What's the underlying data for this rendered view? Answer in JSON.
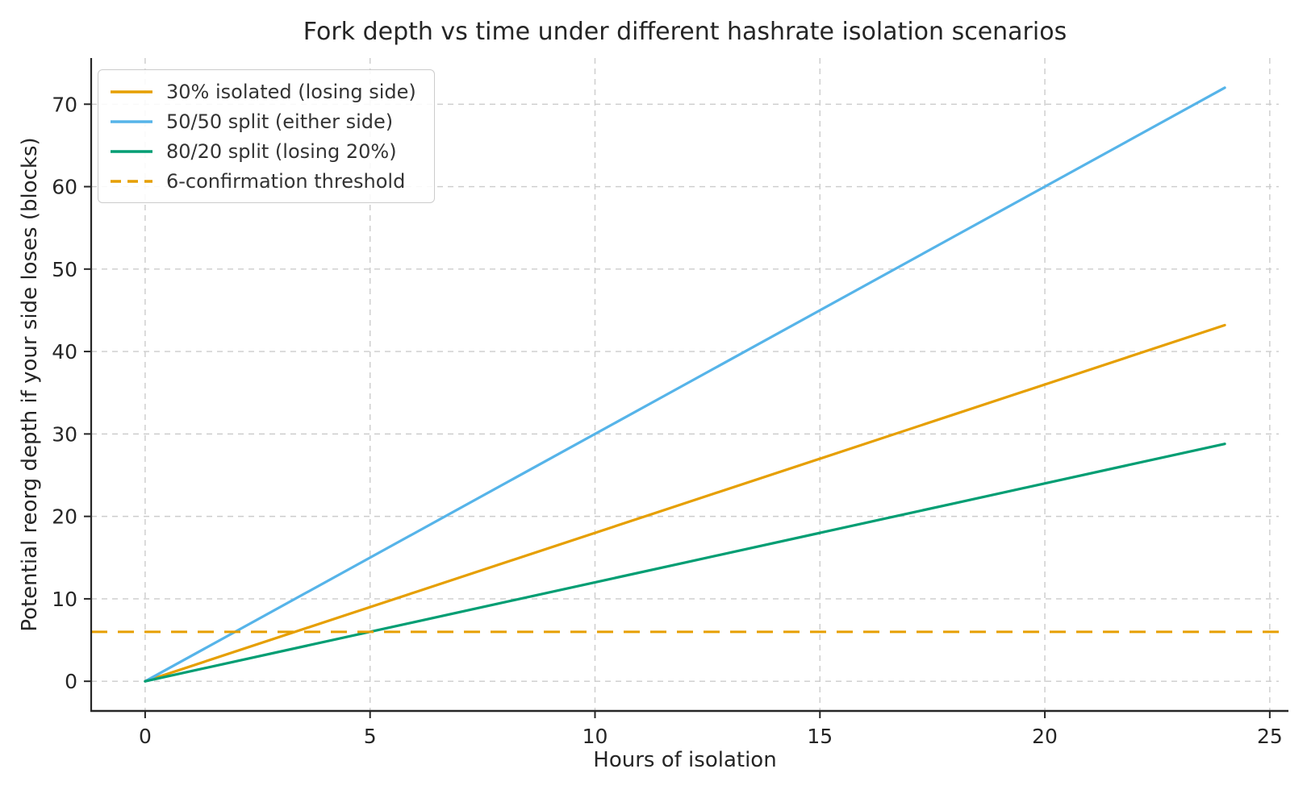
{
  "chart_data": {
    "type": "line",
    "title": "Fork depth vs time under different hashrate isolation scenarios",
    "xlabel": "Hours of isolation",
    "ylabel": "Potential reorg depth if your side loses (blocks)",
    "x_ticks": [
      0,
      5,
      10,
      15,
      20,
      25
    ],
    "y_ticks": [
      0,
      10,
      20,
      30,
      40,
      50,
      60,
      70
    ],
    "xlim": [
      -1.2,
      25.2
    ],
    "ylim": [
      -3.6,
      75.6
    ],
    "grid": true,
    "grid_style": "dashed",
    "legend_position": "upper-left",
    "series": [
      {
        "name": "30% isolated (losing side)",
        "color": "#E69F00",
        "style": "solid",
        "x": [
          0,
          6,
          12,
          18,
          24
        ],
        "values": [
          0,
          10.8,
          21.6,
          32.4,
          43.2
        ]
      },
      {
        "name": "50/50 split (either side)",
        "color": "#56B4E9",
        "style": "solid",
        "x": [
          0,
          6,
          12,
          18,
          24
        ],
        "values": [
          0,
          18,
          36,
          54,
          72
        ]
      },
      {
        "name": "80/20 split (losing 20%)",
        "color": "#009E73",
        "style": "solid",
        "x": [
          0,
          6,
          12,
          18,
          24
        ],
        "values": [
          0,
          7.2,
          14.4,
          21.6,
          28.8
        ]
      },
      {
        "name": "6-confirmation threshold",
        "color": "#E69F00",
        "style": "dashed",
        "hline": 6
      }
    ]
  },
  "colors": {
    "grid": "#cccccc",
    "axis": "#262626",
    "title_text": "#252525",
    "legend_text": "#333333",
    "background": "#ffffff"
  }
}
